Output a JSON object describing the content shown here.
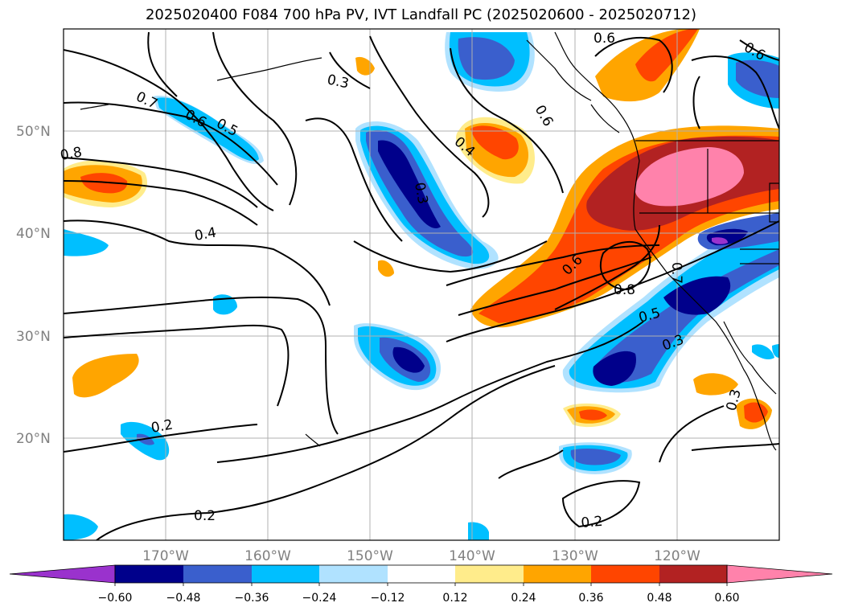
{
  "title": "2025020400 F084 700 hPa PV, IVT Landfall PC (2025020600 - 2025020712)",
  "lat_labels": [
    "50°N",
    "40°N",
    "30°N",
    "20°N"
  ],
  "lon_labels": [
    "170°W",
    "160°W",
    "150°W",
    "140°W",
    "130°W",
    "120°W"
  ],
  "contour_labels": [
    "0.6",
    "0.6",
    "0.3",
    "0.7",
    "0.6",
    "0.5",
    "0.8",
    "0.3",
    "0.4",
    "0.6",
    "0.4",
    "0.6",
    "0.8",
    "0.7",
    "0.5",
    "0.3",
    "0.3",
    "0.2",
    "0.2",
    "0.2"
  ],
  "colorbar": {
    "ticks": [
      "−0.60",
      "−0.48",
      "−0.36",
      "−0.24",
      "−0.12",
      "0.12",
      "0.24",
      "0.36",
      "0.48",
      "0.60"
    ],
    "colors": [
      "#9a32cd",
      "#00008b",
      "#3a5fcd",
      "#00bfff",
      "#b0e2ff",
      "#ffffff",
      "#ffec8b",
      "#ffa500",
      "#ff4500",
      "#b22222",
      "#ff82ab"
    ]
  }
}
